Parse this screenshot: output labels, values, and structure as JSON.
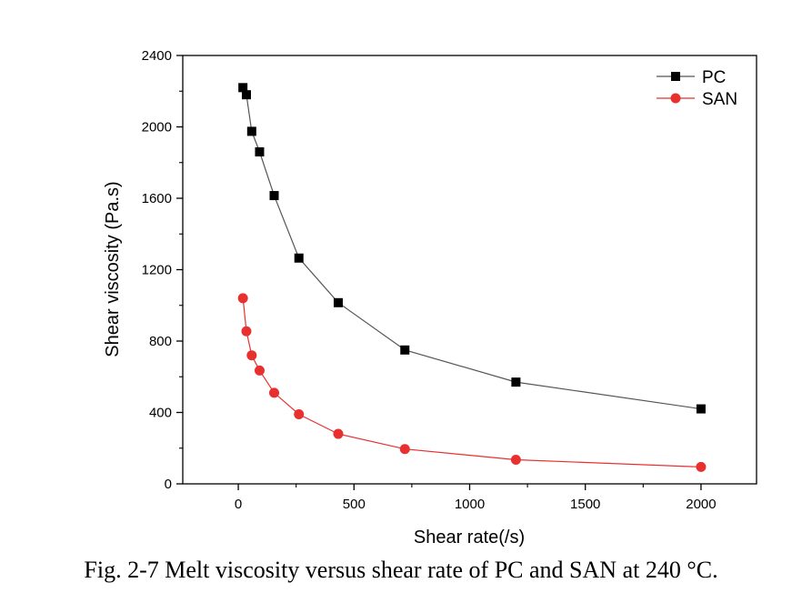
{
  "chart_data": {
    "type": "line",
    "xlabel": "Shear rate(/s)",
    "ylabel": "Shear viscosity (Pa.s)",
    "xlim": [
      -240,
      2240
    ],
    "ylim": [
      0,
      2400
    ],
    "xticks": [
      0,
      500,
      1000,
      1500,
      2000
    ],
    "yticks": [
      0,
      400,
      800,
      1200,
      1600,
      2000,
      2400
    ],
    "grid": false,
    "legend_position": "top-right",
    "series": [
      {
        "name": "PC",
        "marker": "square",
        "color": "#000000",
        "line_color": "#555555",
        "x": [
          20,
          35,
          58,
          92,
          155,
          262,
          432,
          720,
          1200,
          2000
        ],
        "y": [
          2220,
          2180,
          1975,
          1860,
          1615,
          1265,
          1015,
          750,
          570,
          420
        ]
      },
      {
        "name": "SAN",
        "marker": "circle",
        "color": "#e8302e",
        "line_color": "#e8302e",
        "x": [
          20,
          35,
          58,
          92,
          155,
          262,
          432,
          720,
          1200,
          2000
        ],
        "y": [
          1040,
          855,
          720,
          635,
          510,
          390,
          280,
          195,
          135,
          95
        ]
      }
    ]
  },
  "caption": "Fig. 2-7 Melt viscosity versus shear rate of PC and SAN at 240 °C."
}
